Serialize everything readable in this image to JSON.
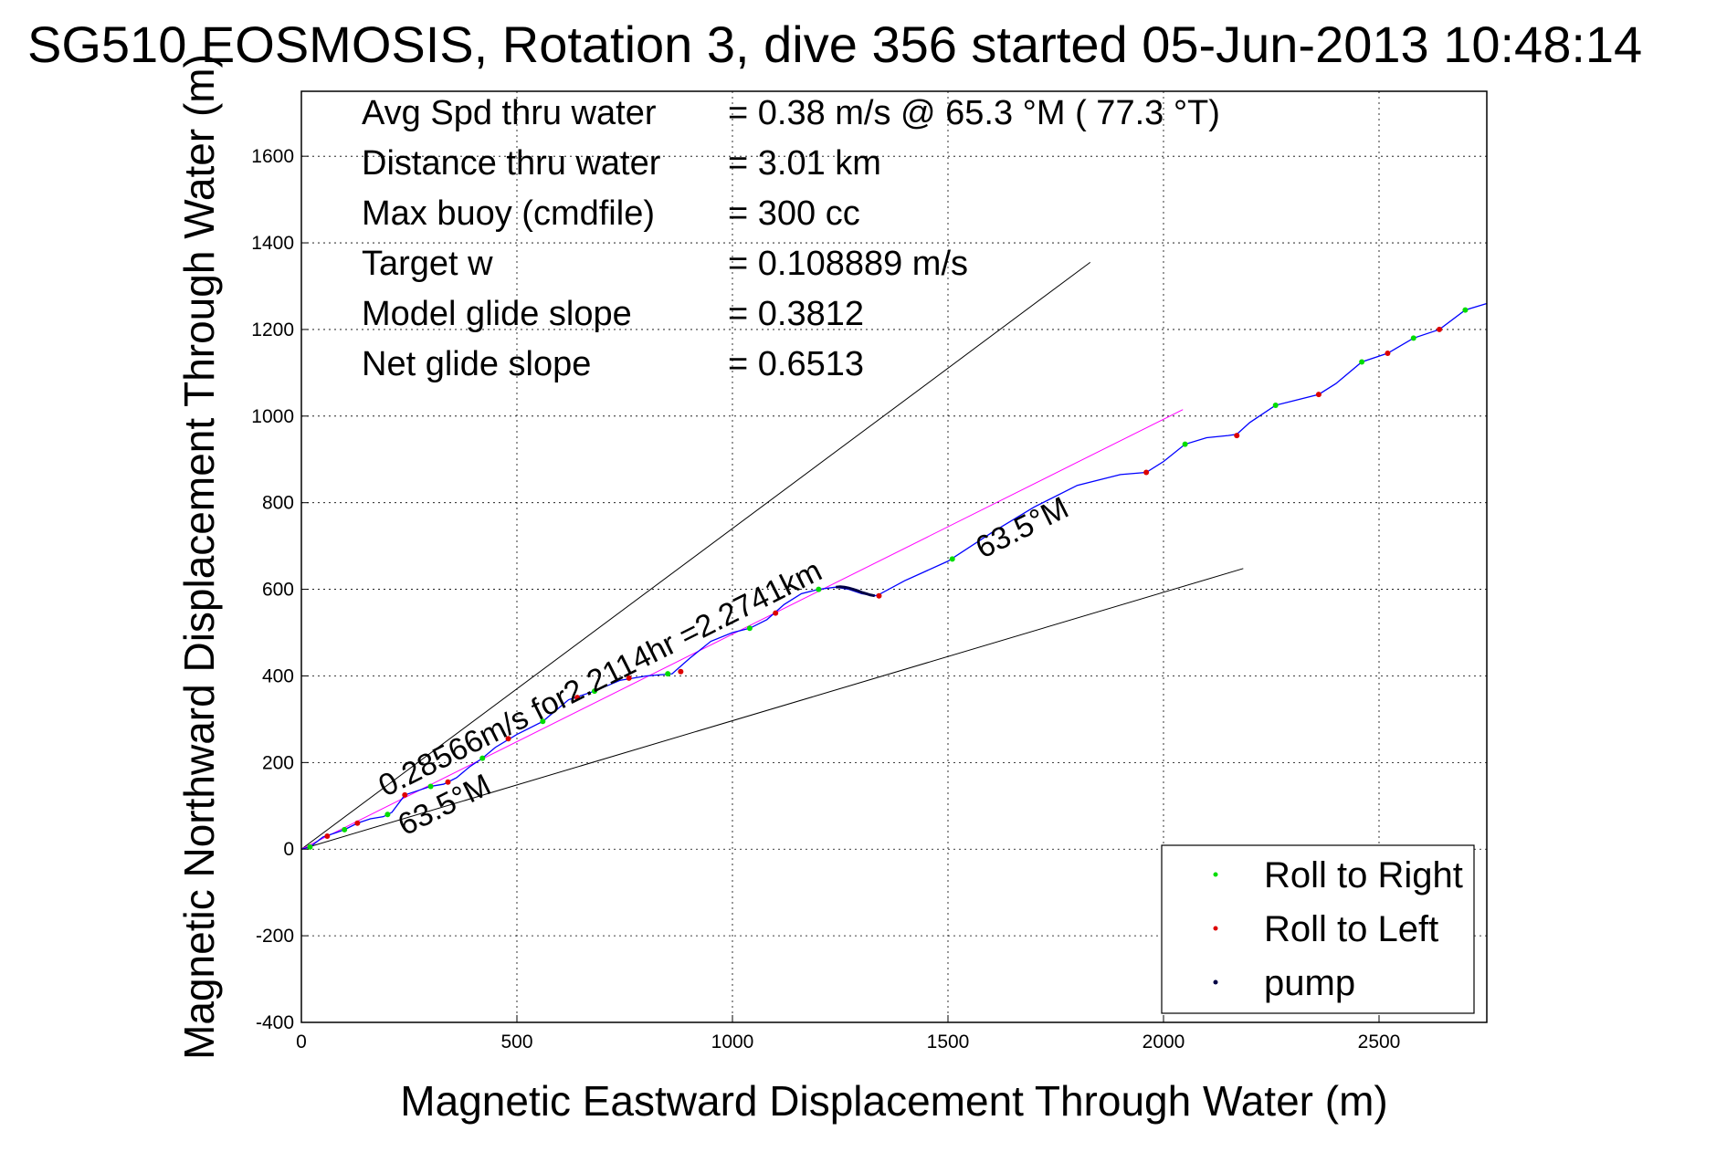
{
  "chart_data": {
    "type": "line",
    "title": "SG510 EOSMOSIS, Rotation 3, dive 356 started 05-Jun-2013 10:48:14",
    "xlabel": "Magnetic Eastward Displacement Through Water (m)",
    "ylabel": "Magnetic Northward Displacement Through Water (m)",
    "xlim": [
      0,
      2750
    ],
    "ylim": [
      -400,
      1750
    ],
    "xticks": [
      0,
      500,
      1000,
      1500,
      2000,
      2500
    ],
    "yticks": [
      -400,
      -200,
      0,
      200,
      400,
      600,
      800,
      1000,
      1200,
      1400,
      1600
    ],
    "grid": true,
    "legend_position": "bottom-right",
    "stats": [
      {
        "label": "Avg Spd thru water",
        "value": "=  0.38 m/s @  65.3 °M ( 77.3 °T)"
      },
      {
        "label": "Distance thru water",
        "value": "=  3.01 km"
      },
      {
        "label": "Max buoy (cmdfile)",
        "value": "= 300 cc"
      },
      {
        "label": "Target w",
        "value": "= 0.108889 m/s"
      },
      {
        "label": "Model glide slope",
        "value": "= 0.3812"
      },
      {
        "label": "Net glide slope",
        "value": "= 0.6513"
      }
    ],
    "annotations": [
      {
        "text": "0.28566m/s for2.2114hr =2.2741km",
        "x": 195,
        "y": 120,
        "angle_deg": 26.6
      },
      {
        "text": "63.5°M",
        "x": 240,
        "y": 30,
        "angle_deg": 26.6
      },
      {
        "text": "63.5°M",
        "x": 1580,
        "y": 670,
        "angle_deg": 26.6
      }
    ],
    "reference_lines": [
      {
        "name": "upper bound",
        "color": "#000000",
        "x": [
          0,
          1830
        ],
        "y": [
          0,
          1355
        ]
      },
      {
        "name": "lower bound",
        "color": "#000000",
        "x": [
          0,
          2185
        ],
        "y": [
          0,
          648
        ]
      },
      {
        "name": "current vector",
        "color": "#ff00ff",
        "x": [
          0,
          2045
        ],
        "y": [
          0,
          1015
        ]
      }
    ],
    "series": [
      {
        "color": "#0000ff",
        "x": [
          0,
          20,
          50,
          80,
          100,
          130,
          160,
          190,
          210,
          240,
          270,
          300,
          330,
          360,
          390,
          420,
          450,
          500,
          560,
          620,
          680,
          740,
          800,
          860,
          900,
          950,
          1000,
          1040,
          1080,
          1120,
          1160,
          1200,
          1240,
          1270,
          1300,
          1330,
          1340,
          1400,
          1500,
          1600,
          1700,
          1800,
          1900,
          1960,
          2000,
          2050,
          2100,
          2150,
          2170,
          2200,
          2260,
          2300,
          2360,
          2400,
          2460,
          2520,
          2580,
          2640,
          2700,
          2750
        ],
        "y": [
          0,
          5,
          28,
          38,
          45,
          60,
          70,
          75,
          85,
          125,
          135,
          145,
          150,
          165,
          190,
          210,
          235,
          265,
          295,
          345,
          365,
          390,
          400,
          405,
          440,
          480,
          500,
          510,
          530,
          565,
          590,
          600,
          605,
          600,
          590,
          585,
          588,
          620,
          665,
          730,
          790,
          840,
          865,
          870,
          895,
          935,
          950,
          955,
          958,
          985,
          1025,
          1035,
          1050,
          1075,
          1125,
          1145,
          1180,
          1200,
          1245,
          1260
        ]
      }
    ],
    "legend": [
      {
        "label": "Roll to Right",
        "color": "#00dd00"
      },
      {
        "label": "Roll to Left",
        "color": "#dd0000"
      },
      {
        "label": "pump",
        "color": "#000044"
      }
    ],
    "roll_right_x": [
      20,
      100,
      200,
      300,
      420,
      560,
      680,
      850,
      1040,
      1200,
      1510,
      2050,
      2260,
      2460,
      2580,
      2700
    ],
    "roll_right_y": [
      5,
      45,
      80,
      145,
      210,
      295,
      365,
      405,
      510,
      600,
      670,
      935,
      1025,
      1125,
      1180,
      1245
    ],
    "roll_left_x": [
      60,
      130,
      240,
      340,
      480,
      640,
      760,
      880,
      1100,
      1340,
      1960,
      2170,
      2360,
      2520,
      2640
    ],
    "roll_left_y": [
      30,
      60,
      125,
      155,
      255,
      350,
      395,
      410,
      545,
      585,
      870,
      955,
      1050,
      1145,
      1200
    ],
    "pump_x": [
      1240,
      1250,
      1260,
      1270,
      1280,
      1290,
      1300,
      1310,
      1320,
      1330
    ],
    "pump_y": [
      605,
      606,
      605,
      603,
      600,
      597,
      593,
      590,
      587,
      585
    ]
  }
}
